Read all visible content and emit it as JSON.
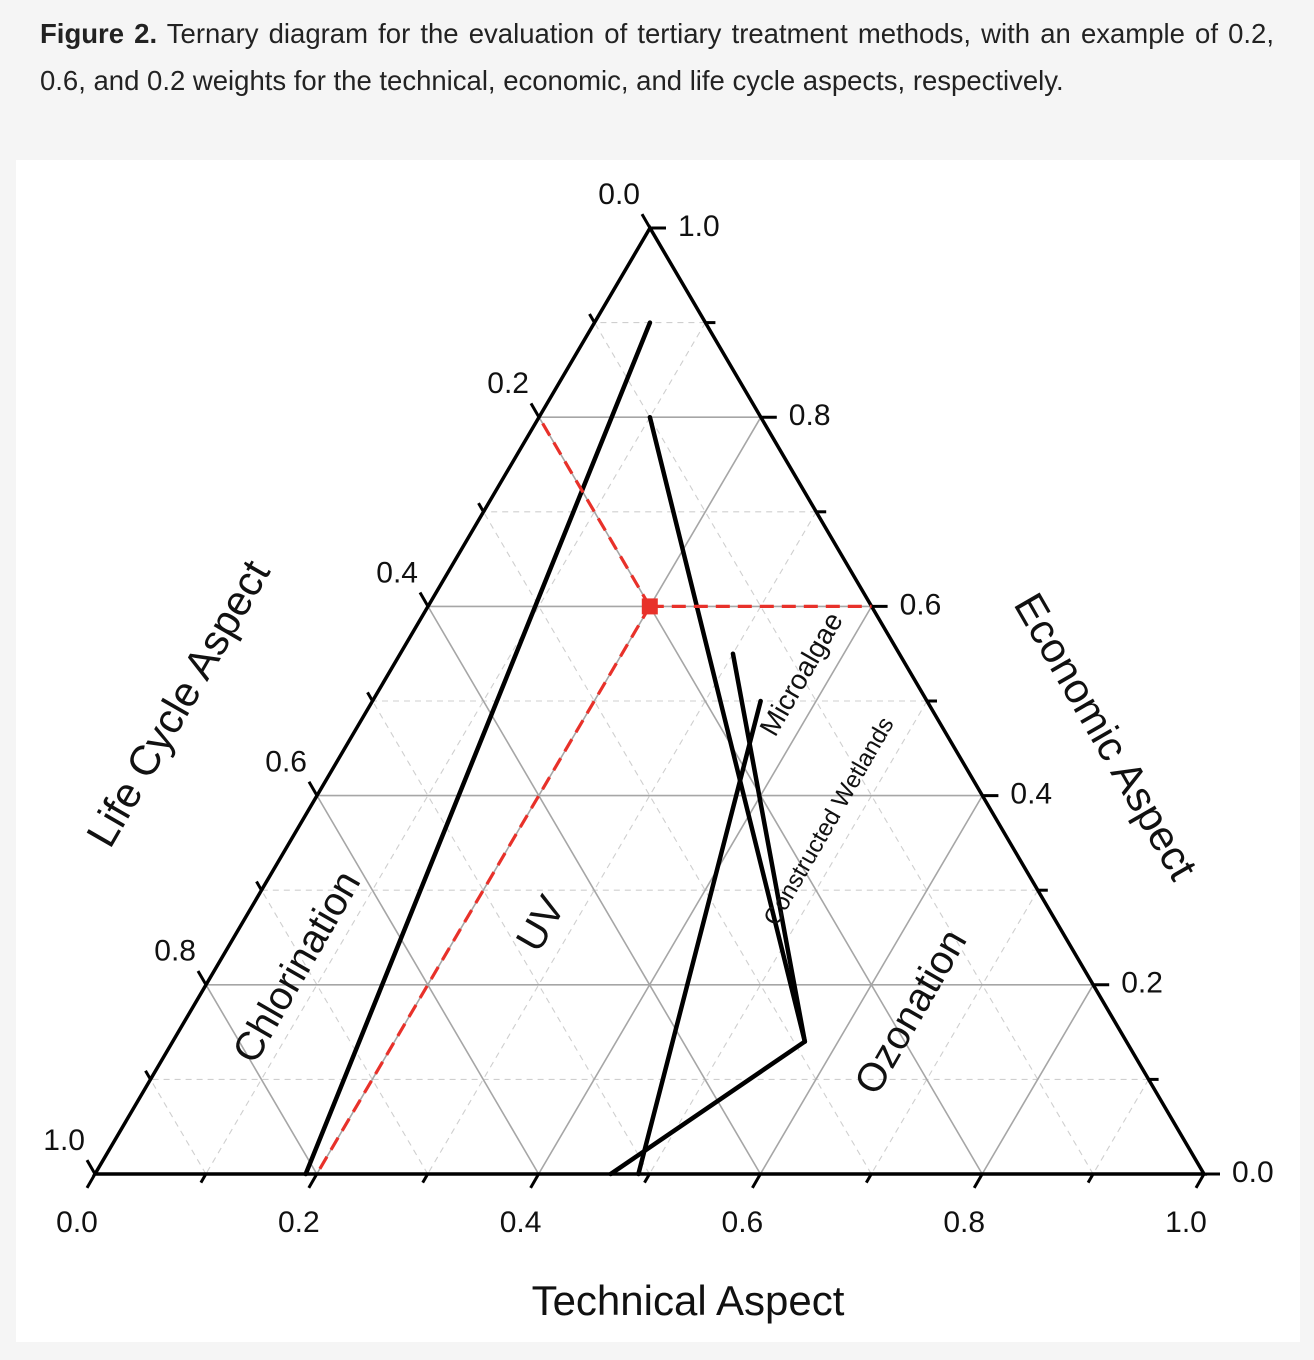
{
  "caption": {
    "label": "Figure 2.",
    "text": " Ternary diagram for the evaluation of tertiary treatment methods, with an example of 0.2, 0.6, and 0.2 weights for the technical, economic, and life cycle aspects, respectively."
  },
  "chart_data": {
    "type": "ternary",
    "axes": {
      "bottom": {
        "title": "Technical Aspect",
        "ticks": [
          "0.0",
          "0.2",
          "0.4",
          "0.6",
          "0.8",
          "1.0"
        ]
      },
      "right": {
        "title": "Economic Aspect",
        "ticks": [
          "0.0",
          "0.2",
          "0.4",
          "0.6",
          "0.8",
          "1.0"
        ]
      },
      "left": {
        "title": "Life Cycle Aspect",
        "ticks": [
          "0.0",
          "0.2",
          "0.4",
          "0.6",
          "0.8",
          "1.0"
        ]
      }
    },
    "grid": true,
    "regions": [
      {
        "name": "Chlorination"
      },
      {
        "name": "UV"
      },
      {
        "name": "Microalgae"
      },
      {
        "name": "Constructed Wetlands"
      },
      {
        "name": "Ozonation"
      }
    ],
    "boundaries": [
      {
        "between": "Chlorination|UV",
        "points": [
          [
            0.19,
            0.0,
            0.81
          ],
          [
            0.05,
            0.9,
            0.05
          ]
        ]
      },
      {
        "between": "UV|Microalgae",
        "points": [
          [
            0.57,
            0.14,
            0.29
          ],
          [
            0.1,
            0.8,
            0.1
          ]
        ]
      },
      {
        "between": "UV|Constructed Wetlands",
        "points": [
          [
            0.465,
            0.0,
            0.535
          ],
          [
            0.57,
            0.14,
            0.29
          ]
        ]
      },
      {
        "between": "Microalgae|Constructed Wetlands",
        "points": [
          [
            0.57,
            0.14,
            0.29
          ],
          [
            0.3,
            0.55,
            0.15
          ]
        ]
      },
      {
        "between": "Constructed Wetlands|Ozonation",
        "points": [
          [
            0.49,
            0.0,
            0.51
          ],
          [
            0.35,
            0.5,
            0.15
          ]
        ]
      }
    ],
    "example_point": {
      "technical": 0.2,
      "economic": 0.6,
      "life_cycle": 0.2,
      "color": "#e8312a"
    }
  }
}
